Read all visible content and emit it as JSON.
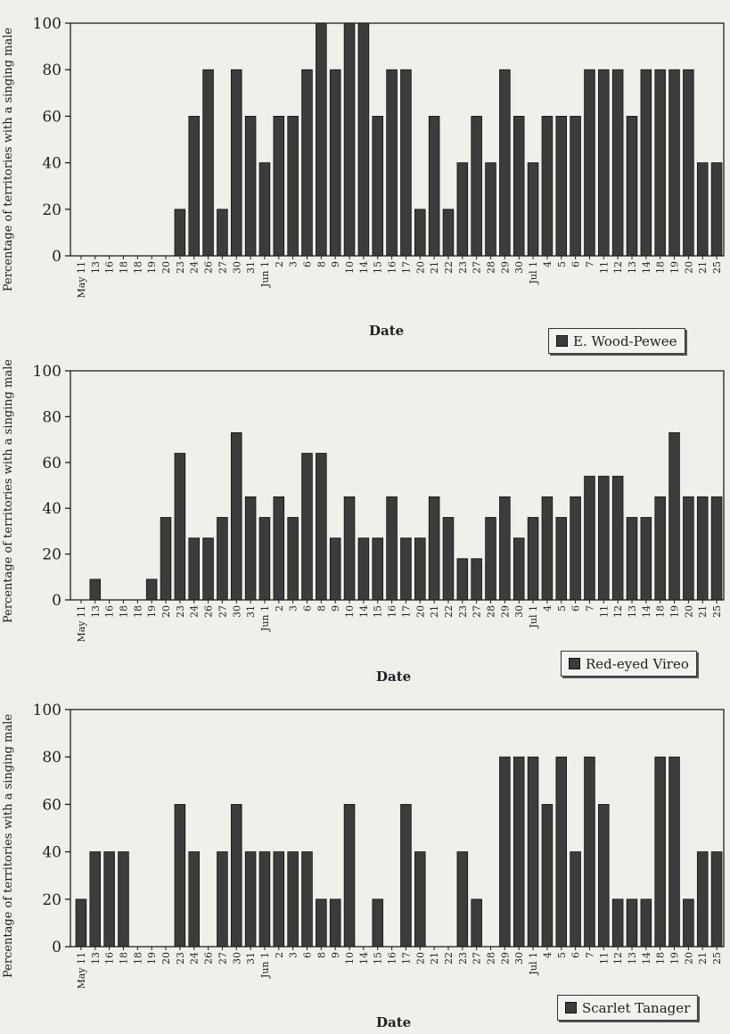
{
  "dates": [
    "May 11",
    "13",
    "16",
    "18",
    "18",
    "19",
    "20",
    "23",
    "24",
    "26",
    "27",
    "30",
    "31",
    "Jun 1",
    "2",
    "3",
    "6",
    "8",
    "9",
    "10",
    "14",
    "15",
    "16",
    "17",
    "20",
    "21",
    "22",
    "23",
    "27",
    "28",
    "29",
    "30",
    "Jul 1",
    "4",
    "5",
    "6",
    "7",
    "11",
    "12",
    "13",
    "14",
    "18",
    "19",
    "20",
    "21",
    "25"
  ],
  "chart_data": [
    {
      "type": "bar",
      "xlabel": "Date",
      "ylabel": "Percentage of territories with a singing male",
      "ylim": [
        0,
        100
      ],
      "yticks": [
        0,
        20,
        40,
        60,
        80,
        100
      ],
      "legend": "E. Wood-Pewee",
      "values": [
        0,
        0,
        0,
        0,
        0,
        0,
        0,
        20,
        60,
        80,
        20,
        80,
        60,
        40,
        60,
        60,
        80,
        100,
        80,
        100,
        100,
        60,
        80,
        80,
        20,
        60,
        20,
        40,
        60,
        40,
        80,
        60,
        40,
        60,
        60,
        60,
        80,
        80,
        80,
        60,
        80,
        80,
        80,
        80,
        40,
        40
      ]
    },
    {
      "type": "bar",
      "xlabel": "Date",
      "ylabel": "Percentage of territories with a singing male",
      "ylim": [
        0,
        100
      ],
      "yticks": [
        0,
        20,
        40,
        60,
        80,
        100
      ],
      "legend": "Red-eyed Vireo",
      "values": [
        0,
        9,
        0,
        0,
        0,
        9,
        36,
        64,
        27,
        27,
        36,
        73,
        45,
        36,
        45,
        36,
        64,
        64,
        27,
        45,
        27,
        27,
        45,
        27,
        27,
        45,
        36,
        18,
        18,
        36,
        45,
        27,
        36,
        45,
        36,
        45,
        54,
        54,
        54,
        36,
        36,
        45,
        73,
        45,
        45,
        45
      ]
    },
    {
      "type": "bar",
      "xlabel": "Date",
      "ylabel": "Percentage of territories with a singing male",
      "ylim": [
        0,
        100
      ],
      "yticks": [
        0,
        20,
        40,
        60,
        80,
        100
      ],
      "legend": "Scarlet Tanager",
      "values": [
        20,
        40,
        40,
        40,
        0,
        0,
        0,
        60,
        40,
        0,
        40,
        60,
        40,
        40,
        40,
        40,
        40,
        20,
        20,
        60,
        0,
        20,
        0,
        60,
        40,
        0,
        0,
        40,
        20,
        0,
        80,
        80,
        80,
        60,
        80,
        40,
        80,
        60,
        20,
        20,
        20,
        80,
        80,
        20,
        40,
        40
      ]
    }
  ],
  "colors": {
    "bar_fill": "#3c3c3c",
    "axis": "#1f1f1f",
    "background": "#f1efea"
  }
}
